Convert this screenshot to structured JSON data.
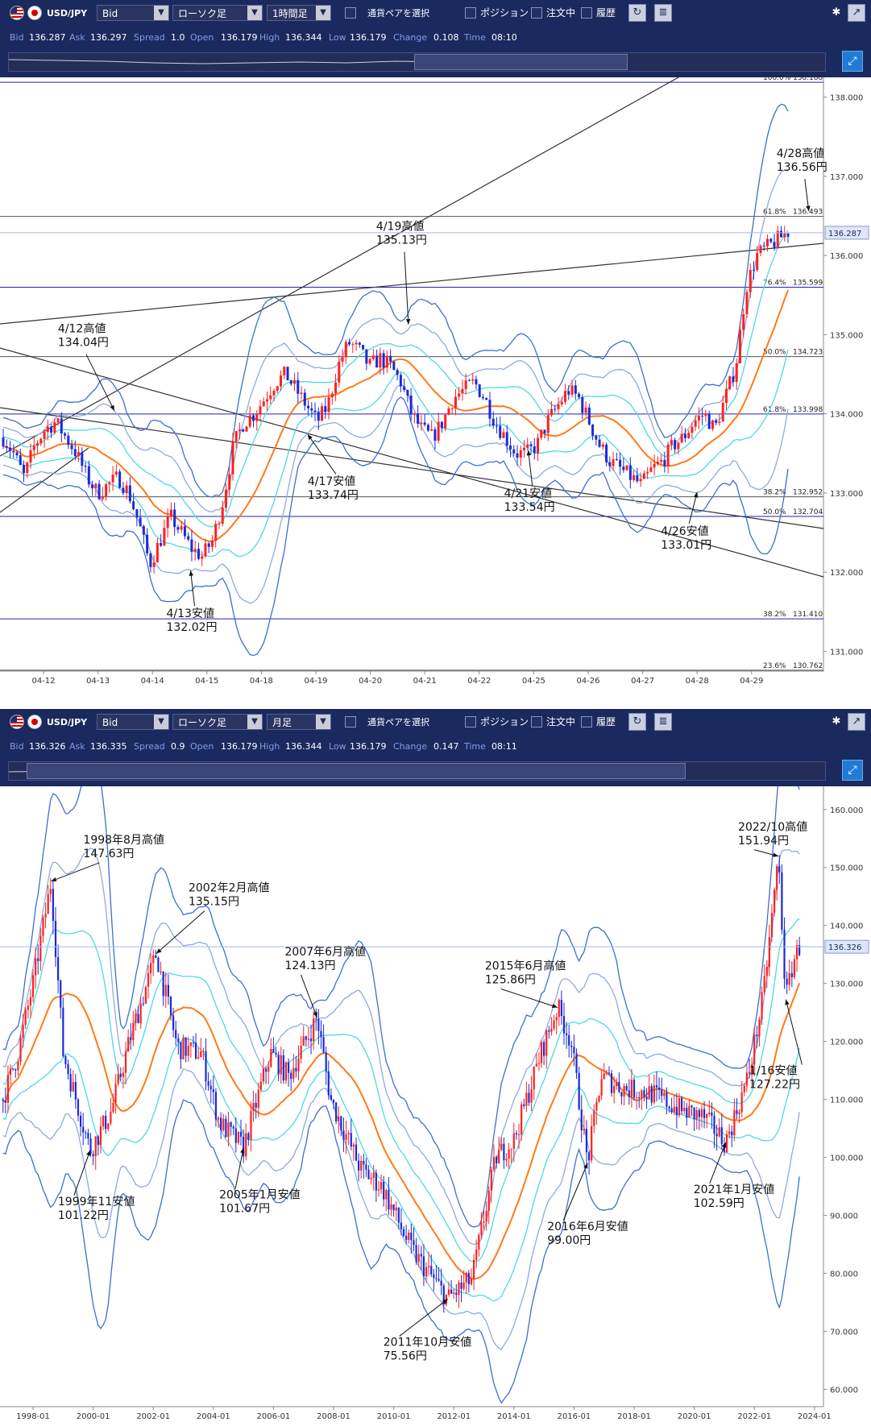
{
  "panels": [
    {
      "symbol": "USD/JPY",
      "price_type": "Bid",
      "chart_type": "ローソク足",
      "timeframe": "1時間足",
      "pair_select": "通貨ペアを選択",
      "position": "ポジション",
      "orders": "注文中",
      "history": "履歴",
      "labels": {
        "bid": "Bid",
        "ask": "Ask",
        "spread": "Spread",
        "open": "Open",
        "high": "High",
        "low": "Low",
        "change": "Change",
        "time": "Time"
      },
      "values": {
        "bid": "136.287",
        "ask": "136.297",
        "spread": "1.0",
        "open": "136.179",
        "high": "136.344",
        "low": "136.179",
        "change": "0.108",
        "time": "08:10"
      }
    },
    {
      "symbol": "USD/JPY",
      "price_type": "Bid",
      "chart_type": "ローソク足",
      "timeframe": "月足",
      "pair_select": "通貨ペアを選択",
      "position": "ポジション",
      "orders": "注文中",
      "history": "履歴",
      "labels": {
        "bid": "Bid",
        "ask": "Ask",
        "spread": "Spread",
        "open": "Open",
        "high": "High",
        "low": "Low",
        "change": "Change",
        "time": "Time"
      },
      "values": {
        "bid": "136.326",
        "ask": "136.335",
        "spread": "0.9",
        "open": "136.179",
        "high": "136.344",
        "low": "136.179",
        "change": "0.147",
        "time": "08:11"
      }
    }
  ],
  "colors": {
    "toolbar_bg": "#1a2a5e",
    "candle_up": "#ff2020",
    "candle_down": "#1a2ad8",
    "ma": "#ff7a1a",
    "band_inner": "#4fd8e8",
    "band_mid": "#8eaadf",
    "band_outer": "#3d6fd0",
    "fib_line": "#2020b0",
    "current_price": "#a9b8e8"
  },
  "chart_data": [
    {
      "type": "candlestick",
      "timeframe": "1時間足",
      "y_ticks": [
        "138.000",
        "137.000",
        "136.000",
        "135.000",
        "134.000",
        "133.000",
        "132.000",
        "131.000"
      ],
      "ylim": [
        130.75,
        138.25
      ],
      "x_ticks": [
        "04-12",
        "04-13",
        "04-14",
        "04-15",
        "04-18",
        "04-19",
        "04-20",
        "04-21",
        "04-22",
        "04-25",
        "04-26",
        "04-27",
        "04-28",
        "04-29"
      ],
      "current_price": "136.287",
      "fibonacci": [
        {
          "label": "100.0%",
          "value": "138.188",
          "blue": true
        },
        {
          "label": "61.8%",
          "value": "136.493",
          "blue": false
        },
        {
          "label": "76.4%",
          "value": "135.599",
          "blue": true
        },
        {
          "label": "50.0%",
          "value": "134.723",
          "blue": false
        },
        {
          "label": "61.8%",
          "value": "133.998",
          "blue": true
        },
        {
          "label": "38.2%",
          "value": "132.952",
          "blue": false
        },
        {
          "label": "50.0%",
          "value": "132.704",
          "blue": true
        },
        {
          "label": "38.2%",
          "value": "131.410",
          "blue": true
        },
        {
          "label": "23.6%",
          "value": "130.762",
          "blue": false
        }
      ],
      "annotations": [
        {
          "line1": "4/12高値",
          "line2": "134.04円",
          "x_index": 1.3,
          "price": 134.04
        },
        {
          "line1": "4/13安値",
          "line2": "132.02円",
          "x_index": 2.7,
          "price": 132.02
        },
        {
          "line1": "4/17安値",
          "line2": "133.74円",
          "x_index": 4.85,
          "price": 133.74
        },
        {
          "line1": "4/19高値",
          "line2": "135.13円",
          "x_index": 6.7,
          "price": 135.13
        },
        {
          "line1": "4/21安値",
          "line2": "133.54円",
          "x_index": 8.9,
          "price": 133.54
        },
        {
          "line1": "4/26安値",
          "line2": "133.01円",
          "x_index": 12.0,
          "price": 133.01
        },
        {
          "line1": "4/28高値",
          "line2": "136.56円",
          "x_index": 14.05,
          "price": 136.56
        }
      ],
      "ohlc_path": [
        133.7,
        133.5,
        133.2,
        133.6,
        133.8,
        133.9,
        133.7,
        133.5,
        133.2,
        133.0,
        133.1,
        133.2,
        133.0,
        132.6,
        132.1,
        132.4,
        132.7,
        132.5,
        132.3,
        132.2,
        132.4,
        132.9,
        133.6,
        133.9,
        134.0,
        134.2,
        134.4,
        134.5,
        134.3,
        134.1,
        133.9,
        134.1,
        134.6,
        134.9,
        134.8,
        134.6,
        134.7,
        134.6,
        134.4,
        134.0,
        133.8,
        133.7,
        133.9,
        134.2,
        134.3,
        134.4,
        134.2,
        133.9,
        133.7,
        133.5,
        133.5,
        133.6,
        133.9,
        134.1,
        134.3,
        134.2,
        133.9,
        133.6,
        133.4,
        133.3,
        133.2,
        133.1,
        133.3,
        133.4,
        133.6,
        133.7,
        133.9,
        134.0,
        133.8,
        134.2,
        134.6,
        135.6,
        136.0,
        136.1,
        136.2,
        136.3
      ]
    },
    {
      "type": "candlestick",
      "timeframe": "月足",
      "y_ticks": [
        "160.000",
        "150.000",
        "140.000",
        "130.000",
        "120.000",
        "110.000",
        "100.000",
        "90.000",
        "80.000",
        "70.000",
        "60.000"
      ],
      "ylim": [
        57,
        164
      ],
      "x_ticks": [
        "1998-01",
        "2000-01",
        "2002-01",
        "2004-01",
        "2006-01",
        "2008-01",
        "2010-01",
        "2012-01",
        "2014-01",
        "2016-01",
        "2018-01",
        "2020-01",
        "2022-01",
        "2024-01"
      ],
      "x_range": [
        1996.9,
        2024.3
      ],
      "current_price": "136.326",
      "annotations": [
        {
          "line1": "1998年8月高値",
          "line2": "147.63円",
          "year": 1998.6,
          "price": 147.63
        },
        {
          "line1": "1999年11安値",
          "line2": "101.22円",
          "year": 1999.9,
          "price": 101.22
        },
        {
          "line1": "2002年2月高値",
          "line2": "135.15円",
          "year": 2002.1,
          "price": 135.15
        },
        {
          "line1": "2005年1月安値",
          "line2": "101.67円",
          "year": 2005.0,
          "price": 101.67
        },
        {
          "line1": "2007年6月高値",
          "line2": "124.13円",
          "year": 2007.45,
          "price": 124.13
        },
        {
          "line1": "2011年10月安値",
          "line2": "75.56円",
          "year": 2011.8,
          "price": 75.56
        },
        {
          "line1": "2015年6月高値",
          "line2": "125.86円",
          "year": 2015.45,
          "price": 125.86
        },
        {
          "line1": "2016年6月安値",
          "line2": "99.00円",
          "year": 2016.45,
          "price": 99.0
        },
        {
          "line1": "2021年1月安値",
          "line2": "102.59円",
          "year": 2021.05,
          "price": 102.59
        },
        {
          "line1": "2022/10高値",
          "line2": "151.94円",
          "year": 2022.8,
          "price": 151.94
        },
        {
          "line1": "1/16安値",
          "line2": "127.22円",
          "year": 2023.05,
          "price": 127.22
        }
      ],
      "anchors": [
        [
          1997.0,
          110
        ],
        [
          1997.5,
          118
        ],
        [
          1998.0,
          130
        ],
        [
          1998.6,
          147.6
        ],
        [
          1999.0,
          118
        ],
        [
          1999.9,
          101.2
        ],
        [
          2000.6,
          108
        ],
        [
          2001.2,
          120
        ],
        [
          2002.1,
          135.2
        ],
        [
          2002.8,
          119
        ],
        [
          2003.6,
          118
        ],
        [
          2004.2,
          106
        ],
        [
          2005.0,
          101.7
        ],
        [
          2005.9,
          118
        ],
        [
          2006.5,
          114
        ],
        [
          2007.45,
          124.1
        ],
        [
          2007.9,
          110
        ],
        [
          2008.9,
          98
        ],
        [
          2009.6,
          95
        ],
        [
          2010.6,
          84
        ],
        [
          2011.8,
          75.6
        ],
        [
          2012.6,
          79
        ],
        [
          2013.4,
          100
        ],
        [
          2014.0,
          103
        ],
        [
          2014.9,
          118
        ],
        [
          2015.45,
          125.9
        ],
        [
          2015.9,
          120
        ],
        [
          2016.45,
          99.0
        ],
        [
          2016.9,
          114
        ],
        [
          2017.6,
          112
        ],
        [
          2018.6,
          111
        ],
        [
          2019.6,
          108
        ],
        [
          2020.3,
          107
        ],
        [
          2021.05,
          102.6
        ],
        [
          2021.8,
          114
        ],
        [
          2022.3,
          128
        ],
        [
          2022.8,
          151.9
        ],
        [
          2023.05,
          127.2
        ],
        [
          2023.3,
          134
        ],
        [
          2023.5,
          136.3
        ]
      ]
    }
  ]
}
